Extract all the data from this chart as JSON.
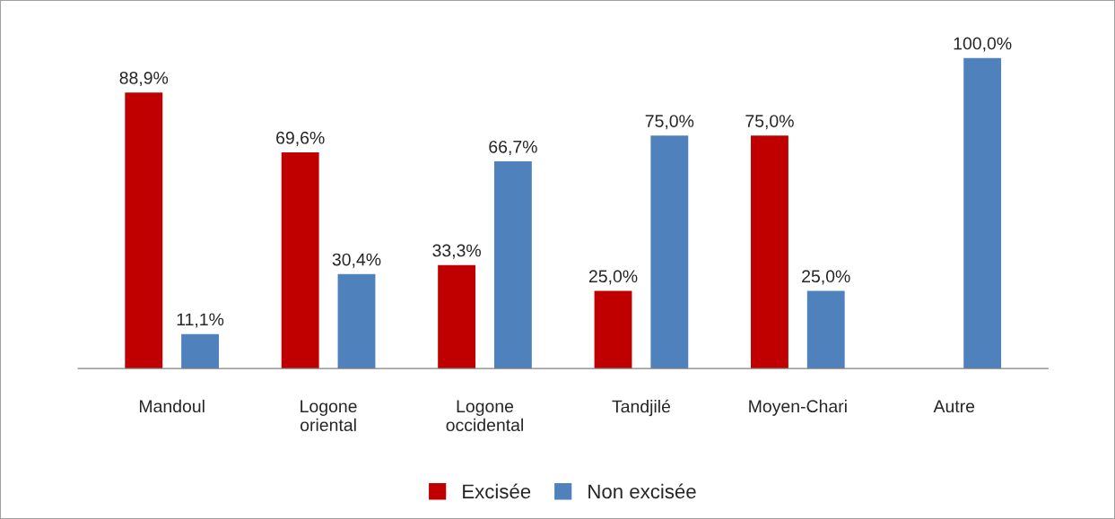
{
  "chart_data": {
    "type": "bar",
    "categories": [
      "Mandoul",
      "Logone\noriental",
      "Logone\noccidental",
      "Tandjilé",
      "Moyen-Chari",
      "Autre"
    ],
    "series": [
      {
        "name": "Excisée",
        "color": "#c00000",
        "values": [
          88.9,
          69.6,
          33.3,
          25.0,
          75.0,
          0
        ],
        "value_labels": [
          "88,9%",
          "69,6%",
          "33,3%",
          "25,0%",
          "75,0%",
          null
        ]
      },
      {
        "name": "Non excisée",
        "color": "#4f81bd",
        "values": [
          11.1,
          30.4,
          66.7,
          75.0,
          25.0,
          100.0
        ],
        "value_labels": [
          "11,1%",
          "30,4%",
          "66,7%",
          "75,0%",
          "25,0%",
          "100,0%"
        ]
      }
    ],
    "legend": "bottom",
    "grid": false,
    "tick_labels": "x"
  }
}
